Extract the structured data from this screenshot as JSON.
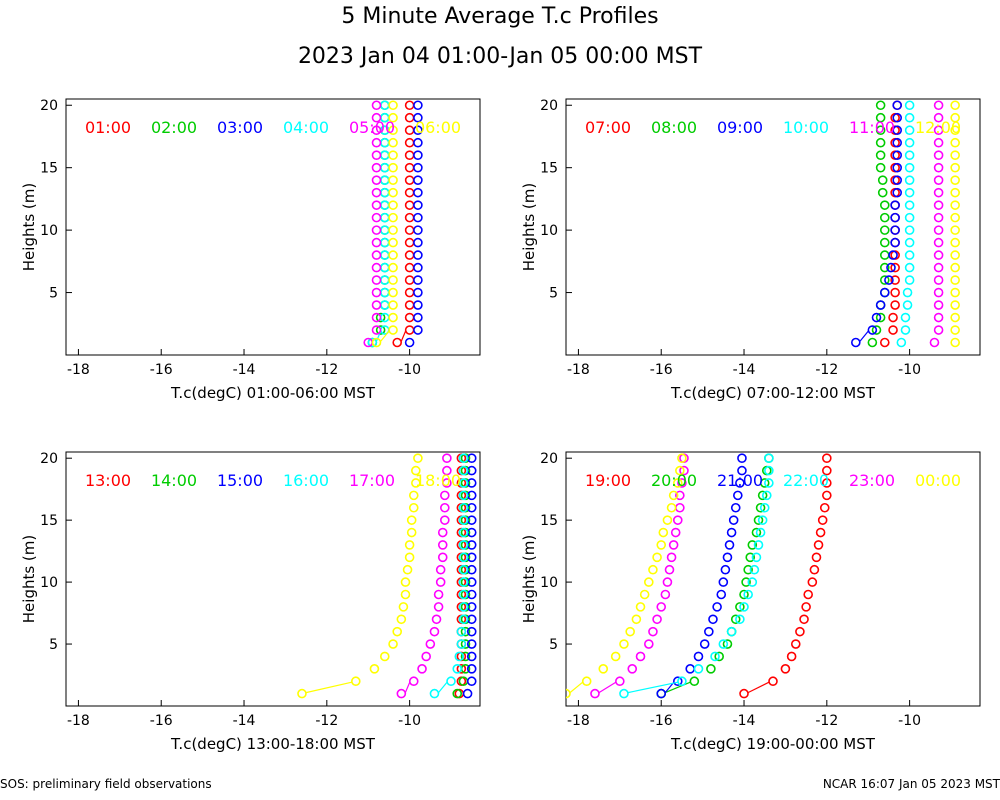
{
  "title": "5 Minute Average T.c Profiles",
  "subtitle": "2023 Jan 04 01:00-Jan 05 00:00 MST",
  "footer_left": "SOS: preliminary field observations",
  "footer_right": "NCAR 16:07 Jan 05 2023 MST",
  "chart_data": [
    {
      "type": "scatter",
      "xlabel": "T.c(degC) 01:00-06:00 MST",
      "ylabel": "Heights (m)",
      "xlim": [
        -18.3,
        -8.3
      ],
      "ylim": [
        0,
        20.5
      ],
      "xticks": [
        -18,
        -16,
        -14,
        -12,
        -10
      ],
      "yticks": [
        5,
        10,
        15,
        20
      ],
      "series": [
        {
          "name": "01:00",
          "color": "#ff0000",
          "temps": [
            -10.3,
            -10.0,
            -10.0,
            -10.0,
            -10.0,
            -10.0,
            -10.0,
            -10.0,
            -10.0,
            -10.0,
            -10.0,
            -10.0,
            -10.0,
            -10.0,
            -10.0,
            -10.0,
            -10.0,
            -10.0,
            -10.0,
            -10.0
          ]
        },
        {
          "name": "02:00",
          "color": "#00cc00",
          "temps": [
            -10.9,
            -10.7,
            -10.7,
            -10.6,
            -10.6,
            -10.6,
            -10.6,
            -10.6,
            -10.6,
            -10.6,
            -10.6,
            -10.6,
            -10.6,
            -10.6,
            -10.6,
            -10.6,
            -10.6,
            -10.6,
            -10.6,
            -10.6
          ]
        },
        {
          "name": "03:00",
          "color": "#0000ff",
          "temps": [
            -10.0,
            -9.8,
            -9.8,
            -9.8,
            -9.8,
            -9.8,
            -9.8,
            -9.8,
            -9.8,
            -9.8,
            -9.8,
            -9.8,
            -9.8,
            -9.8,
            -9.8,
            -9.8,
            -9.8,
            -9.8,
            -9.8,
            -9.8
          ]
        },
        {
          "name": "04:00",
          "color": "#00ffff",
          "temps": [
            -10.9,
            -10.6,
            -10.6,
            -10.6,
            -10.6,
            -10.6,
            -10.6,
            -10.6,
            -10.6,
            -10.6,
            -10.6,
            -10.6,
            -10.6,
            -10.6,
            -10.6,
            -10.6,
            -10.6,
            -10.6,
            -10.6,
            -10.6
          ]
        },
        {
          "name": "05:00",
          "color": "#ff00ff",
          "temps": [
            -11.0,
            -10.8,
            -10.8,
            -10.8,
            -10.8,
            -10.8,
            -10.8,
            -10.8,
            -10.8,
            -10.8,
            -10.8,
            -10.8,
            -10.8,
            -10.8,
            -10.8,
            -10.8,
            -10.8,
            -10.8,
            -10.8,
            -10.8
          ]
        },
        {
          "name": "06:00",
          "color": "#ffff00",
          "temps": [
            -10.8,
            -10.4,
            -10.4,
            -10.4,
            -10.4,
            -10.4,
            -10.4,
            -10.4,
            -10.4,
            -10.4,
            -10.4,
            -10.4,
            -10.4,
            -10.4,
            -10.4,
            -10.4,
            -10.4,
            -10.4,
            -10.4,
            -10.4
          ]
        }
      ]
    },
    {
      "type": "scatter",
      "xlabel": "T.c(degC) 07:00-12:00 MST",
      "ylabel": "Heights (m)",
      "xlim": [
        -18.3,
        -8.3
      ],
      "ylim": [
        0,
        20.5
      ],
      "xticks": [
        -18,
        -16,
        -14,
        -12,
        -10
      ],
      "yticks": [
        5,
        10,
        15,
        20
      ],
      "series": [
        {
          "name": "07:00",
          "color": "#ff0000",
          "temps": [
            -10.6,
            -10.4,
            -10.4,
            -10.35,
            -10.35,
            -10.35,
            -10.35,
            -10.35,
            -10.35,
            -10.35,
            -10.35,
            -10.35,
            -10.35,
            -10.35,
            -10.35,
            -10.35,
            -10.35,
            -10.35,
            -10.35,
            -10.3
          ]
        },
        {
          "name": "08:00",
          "color": "#00cc00",
          "temps": [
            -10.9,
            -10.8,
            -10.7,
            -10.7,
            -10.6,
            -10.6,
            -10.6,
            -10.6,
            -10.6,
            -10.6,
            -10.6,
            -10.6,
            -10.65,
            -10.65,
            -10.7,
            -10.7,
            -10.7,
            -10.7,
            -10.7,
            -10.7
          ]
        },
        {
          "name": "09:00",
          "color": "#0000ff",
          "temps": [
            -11.3,
            -10.9,
            -10.8,
            -10.7,
            -10.6,
            -10.5,
            -10.45,
            -10.4,
            -10.35,
            -10.35,
            -10.35,
            -10.35,
            -10.3,
            -10.3,
            -10.3,
            -10.3,
            -10.3,
            -10.3,
            -10.3,
            -10.3
          ]
        },
        {
          "name": "10:00",
          "color": "#00ffff",
          "temps": [
            -10.2,
            -10.1,
            -10.1,
            -10.05,
            -10.05,
            -10.0,
            -10.0,
            -10.0,
            -10.0,
            -10.0,
            -10.0,
            -10.0,
            -10.0,
            -10.0,
            -10.0,
            -10.0,
            -10.0,
            -10.0,
            -10.0,
            -10.0
          ]
        },
        {
          "name": "11:00",
          "color": "#ff00ff",
          "temps": [
            -9.4,
            -9.3,
            -9.3,
            -9.3,
            -9.3,
            -9.3,
            -9.3,
            -9.3,
            -9.3,
            -9.3,
            -9.3,
            -9.3,
            -9.3,
            -9.3,
            -9.3,
            -9.3,
            -9.3,
            -9.3,
            -9.3,
            -9.3
          ]
        },
        {
          "name": "12:00",
          "color": "#ffff00",
          "temps": [
            -8.9,
            -8.9,
            -8.9,
            -8.9,
            -8.9,
            -8.9,
            -8.9,
            -8.9,
            -8.9,
            -8.9,
            -8.9,
            -8.9,
            -8.9,
            -8.9,
            -8.9,
            -8.9,
            -8.9,
            -8.9,
            -8.9,
            -8.9
          ]
        }
      ]
    },
    {
      "type": "scatter",
      "xlabel": "T.c(degC) 13:00-18:00 MST",
      "ylabel": "Heights (m)",
      "xlim": [
        -18.3,
        -8.3
      ],
      "ylim": [
        0,
        20.5
      ],
      "xticks": [
        -18,
        -16,
        -14,
        -12,
        -10
      ],
      "yticks": [
        5,
        10,
        15,
        20
      ],
      "series": [
        {
          "name": "13:00",
          "color": "#ff0000",
          "temps": [
            -8.8,
            -8.75,
            -8.75,
            -8.75,
            -8.75,
            -8.75,
            -8.75,
            -8.75,
            -8.75,
            -8.75,
            -8.75,
            -8.75,
            -8.75,
            -8.75,
            -8.75,
            -8.75,
            -8.75,
            -8.75,
            -8.75,
            -8.75
          ]
        },
        {
          "name": "14:00",
          "color": "#00cc00",
          "temps": [
            -8.85,
            -8.7,
            -8.65,
            -8.65,
            -8.65,
            -8.65,
            -8.65,
            -8.65,
            -8.65,
            -8.65,
            -8.65,
            -8.65,
            -8.65,
            -8.65,
            -8.65,
            -8.65,
            -8.65,
            -8.65,
            -8.65,
            -8.65
          ]
        },
        {
          "name": "15:00",
          "color": "#0000ff",
          "temps": [
            -8.6,
            -8.5,
            -8.5,
            -8.5,
            -8.5,
            -8.5,
            -8.5,
            -8.5,
            -8.5,
            -8.5,
            -8.5,
            -8.5,
            -8.5,
            -8.5,
            -8.5,
            -8.5,
            -8.5,
            -8.5,
            -8.5,
            -8.5
          ]
        },
        {
          "name": "16:00",
          "color": "#00ffff",
          "temps": [
            -9.4,
            -9.0,
            -8.85,
            -8.8,
            -8.75,
            -8.75,
            -8.7,
            -8.7,
            -8.7,
            -8.7,
            -8.7,
            -8.7,
            -8.7,
            -8.7,
            -8.7,
            -8.7,
            -8.7,
            -8.7,
            -8.7,
            -8.7
          ]
        },
        {
          "name": "17:00",
          "color": "#ff00ff",
          "temps": [
            -10.2,
            -9.9,
            -9.7,
            -9.6,
            -9.5,
            -9.4,
            -9.35,
            -9.3,
            -9.3,
            -9.25,
            -9.25,
            -9.2,
            -9.2,
            -9.2,
            -9.15,
            -9.15,
            -9.15,
            -9.1,
            -9.1,
            -9.1
          ]
        },
        {
          "name": "18:00",
          "color": "#ffff00",
          "temps": [
            -12.6,
            -11.3,
            -10.85,
            -10.6,
            -10.4,
            -10.3,
            -10.2,
            -10.15,
            -10.1,
            -10.1,
            -10.05,
            -10.0,
            -10.0,
            -9.95,
            -9.95,
            -9.9,
            -9.9,
            -9.85,
            -9.85,
            -9.8
          ]
        }
      ]
    },
    {
      "type": "scatter",
      "xlabel": "T.c(degC) 19:00-00:00 MST",
      "ylabel": "Heights (m)",
      "xlim": [
        -18.3,
        -8.3
      ],
      "ylim": [
        0,
        20.5
      ],
      "xticks": [
        -18,
        -16,
        -14,
        -12,
        -10
      ],
      "yticks": [
        5,
        10,
        15,
        20
      ],
      "series": [
        {
          "name": "19:00",
          "color": "#ff0000",
          "temps": [
            -14.0,
            -13.3,
            -13.0,
            -12.85,
            -12.75,
            -12.65,
            -12.55,
            -12.5,
            -12.45,
            -12.35,
            -12.3,
            -12.25,
            -12.2,
            -12.15,
            -12.1,
            -12.05,
            -12.0,
            -12.0,
            -12.0,
            -12.0
          ]
        },
        {
          "name": "20:00",
          "color": "#00cc00",
          "temps": [
            -16.0,
            -15.2,
            -14.8,
            -14.6,
            -14.4,
            -14.3,
            -14.2,
            -14.1,
            -14.0,
            -13.95,
            -13.9,
            -13.85,
            -13.8,
            -13.7,
            -13.65,
            -13.6,
            -13.55,
            -13.5,
            -13.45,
            -13.4
          ]
        },
        {
          "name": "21:00",
          "color": "#0000ff",
          "temps": [
            -16.0,
            -15.6,
            -15.3,
            -15.1,
            -14.95,
            -14.85,
            -14.75,
            -14.65,
            -14.55,
            -14.5,
            -14.45,
            -14.4,
            -14.35,
            -14.3,
            -14.25,
            -14.2,
            -14.15,
            -14.1,
            -14.05,
            -14.05
          ]
        },
        {
          "name": "22:00",
          "color": "#00ffff",
          "temps": [
            -16.9,
            -15.5,
            -15.1,
            -14.7,
            -14.5,
            -14.3,
            -14.1,
            -14.0,
            -13.9,
            -13.8,
            -13.75,
            -13.7,
            -13.65,
            -13.6,
            -13.55,
            -13.5,
            -13.45,
            -13.4,
            -13.4,
            -13.4
          ]
        },
        {
          "name": "23:00",
          "color": "#ff00ff",
          "temps": [
            -17.6,
            -17.0,
            -16.7,
            -16.5,
            -16.3,
            -16.2,
            -16.1,
            -16.0,
            -15.9,
            -15.85,
            -15.8,
            -15.75,
            -15.7,
            -15.65,
            -15.6,
            -15.55,
            -15.55,
            -15.5,
            -15.45,
            -15.45
          ]
        },
        {
          "name": "00:00",
          "color": "#ffff00",
          "temps": [
            -18.3,
            -17.8,
            -17.4,
            -17.1,
            -16.9,
            -16.75,
            -16.6,
            -16.5,
            -16.4,
            -16.3,
            -16.2,
            -16.1,
            -16.0,
            -15.95,
            -15.85,
            -15.75,
            -15.7,
            -15.6,
            -15.55,
            -15.5
          ]
        }
      ]
    }
  ]
}
